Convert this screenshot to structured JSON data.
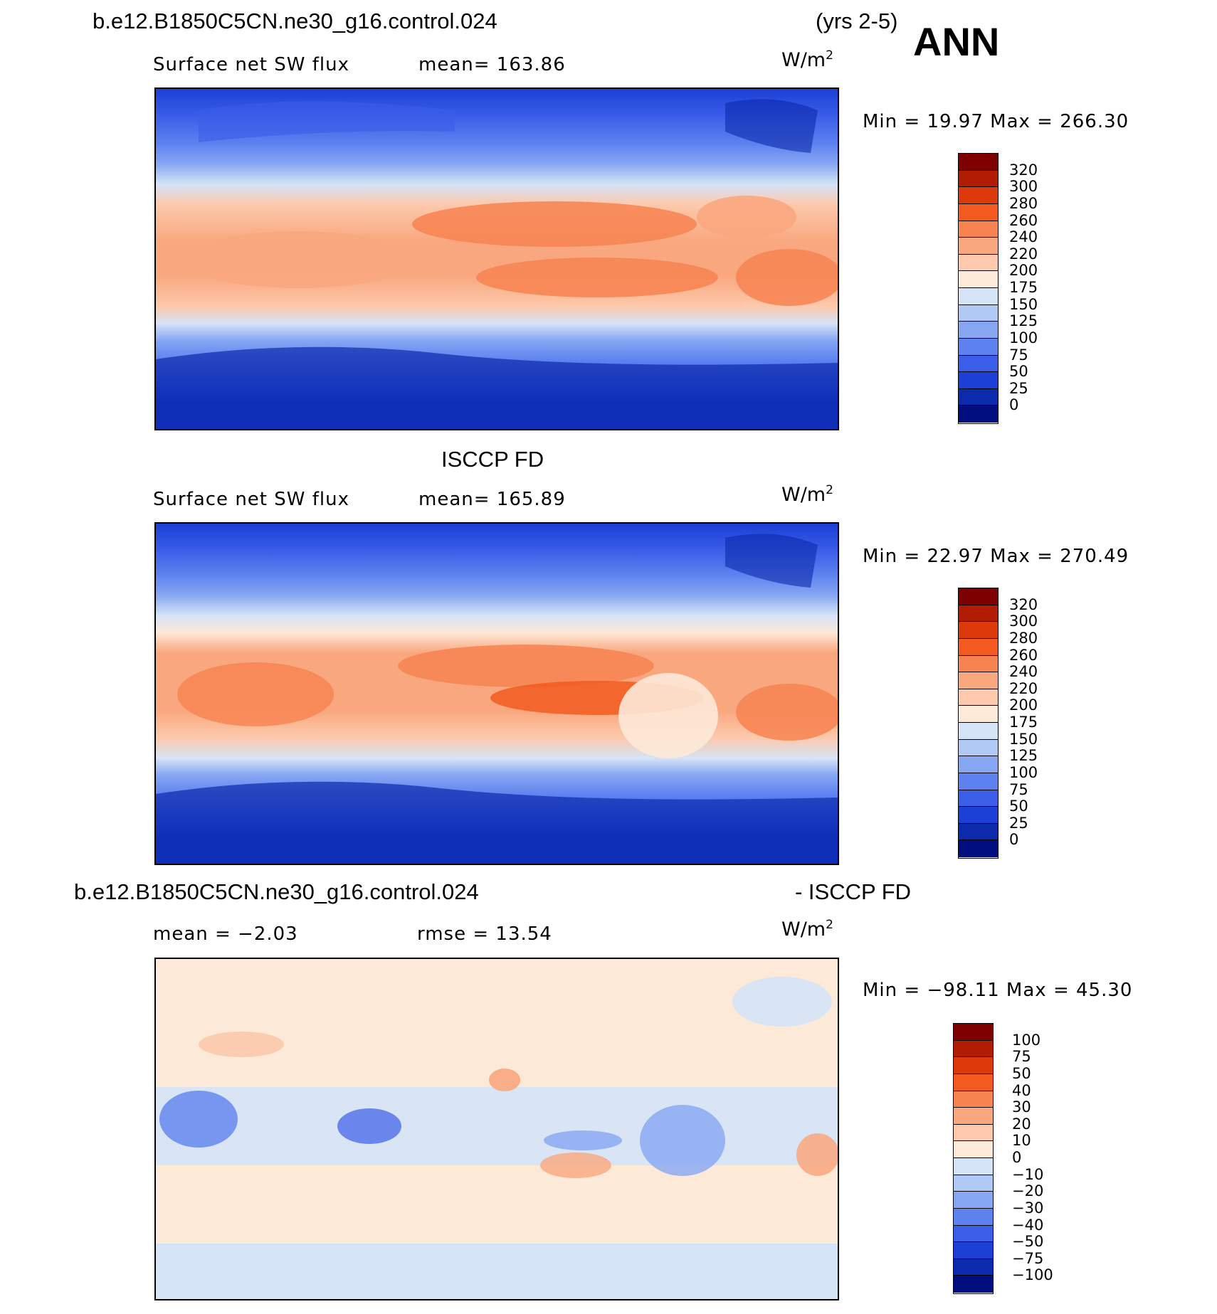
{
  "header": {
    "case_name": "b.e12.B1850C5CN.ne30_g16.control.024",
    "years": "(yrs 2-5)",
    "season": "ANN"
  },
  "panels": [
    {
      "id": "model",
      "heading": "",
      "variable": "Surface net SW flux",
      "stat1": "mean=  163.86",
      "stat2": "",
      "units": "W/m",
      "units_sup": "2",
      "minmax": "Min =   19.97  Max  =  266.30",
      "colorbar": {
        "labels": [
          "320",
          "300",
          "280",
          "260",
          "240",
          "220",
          "200",
          "175",
          "150",
          "125",
          "100",
          "75",
          "50",
          "25",
          "0"
        ],
        "colors": [
          "#7f0000",
          "#b21c02",
          "#dc3a0a",
          "#f25a1f",
          "#f78350",
          "#f9a77e",
          "#fcc9ac",
          "#fde9d8",
          "#d5e3f7",
          "#b0c9f5",
          "#86a6f2",
          "#5d82ef",
          "#3a5ee8",
          "#1c3fd6",
          "#0b2aac",
          "#000e80"
        ]
      }
    },
    {
      "id": "obs",
      "heading": "ISCCP FD",
      "variable": "Surface net SW flux",
      "stat1": "mean=  165.89",
      "stat2": "",
      "units": "W/m",
      "units_sup": "2",
      "minmax": "Min =   22.97  Max  =  270.49",
      "colorbar": {
        "labels": [
          "320",
          "300",
          "280",
          "260",
          "240",
          "220",
          "200",
          "175",
          "150",
          "125",
          "100",
          "75",
          "50",
          "25",
          "0"
        ],
        "colors": [
          "#7f0000",
          "#b21c02",
          "#dc3a0a",
          "#f25a1f",
          "#f78350",
          "#f9a77e",
          "#fcc9ac",
          "#fde9d8",
          "#d5e3f7",
          "#b0c9f5",
          "#86a6f2",
          "#5d82ef",
          "#3a5ee8",
          "#1c3fd6",
          "#0b2aac",
          "#000e80"
        ]
      }
    },
    {
      "id": "diff",
      "heading": "b.e12.B1850C5CN.ne30_g16.control.024",
      "heading_right": "- ISCCP FD",
      "variable": "",
      "stat1": "mean  =   −2.03",
      "stat2": "rmse  =    13.54",
      "units": "W/m",
      "units_sup": "2",
      "minmax": "Min = −98.11  Max  =    45.30",
      "colorbar": {
        "labels": [
          "100",
          "75",
          "50",
          "40",
          "30",
          "20",
          "10",
          "0",
          "−10",
          "−20",
          "−30",
          "−40",
          "−50",
          "−75",
          "−100"
        ],
        "colors": [
          "#7f0000",
          "#b21c02",
          "#dc3a0a",
          "#f25a1f",
          "#f78350",
          "#f9a77e",
          "#fcc9ac",
          "#fde9d8",
          "#d5e3f7",
          "#b0c9f5",
          "#86a6f2",
          "#5d82ef",
          "#3a5ee8",
          "#1c3fd6",
          "#0b2aac",
          "#000e80"
        ]
      }
    }
  ]
}
